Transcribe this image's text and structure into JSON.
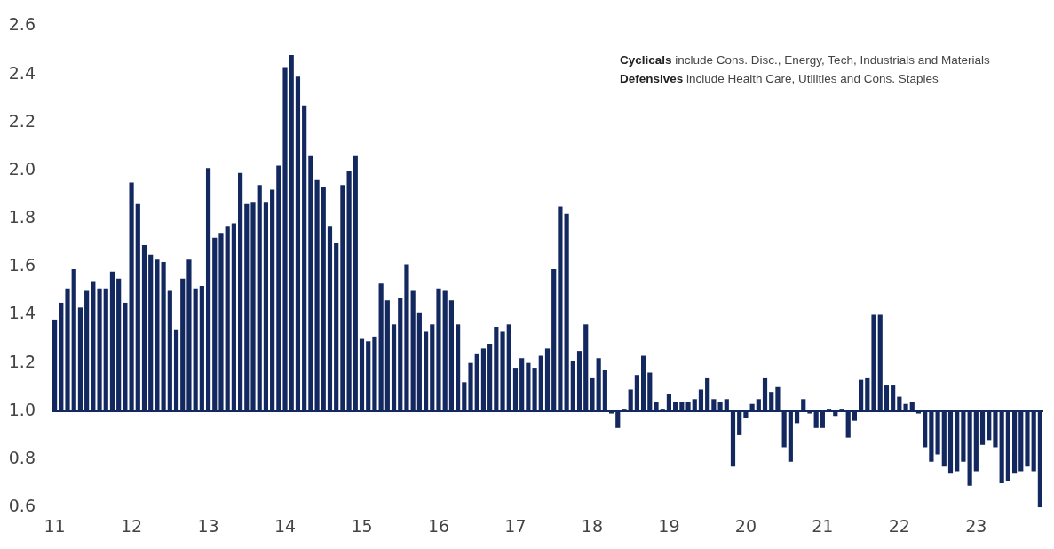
{
  "chart_data": {
    "type": "bar",
    "categories": [
      "11",
      null,
      null,
      null,
      null,
      null,
      null,
      null,
      null,
      null,
      null,
      null,
      "12",
      null,
      null,
      null,
      null,
      null,
      null,
      null,
      null,
      null,
      null,
      null,
      "13",
      null,
      null,
      null,
      null,
      null,
      null,
      null,
      null,
      null,
      null,
      null,
      "14",
      null,
      null,
      null,
      null,
      null,
      null,
      null,
      null,
      null,
      null,
      null,
      "15",
      null,
      null,
      null,
      null,
      null,
      null,
      null,
      null,
      null,
      null,
      null,
      "16",
      null,
      null,
      null,
      null,
      null,
      null,
      null,
      null,
      null,
      null,
      null,
      "17",
      null,
      null,
      null,
      null,
      null,
      null,
      null,
      null,
      null,
      null,
      null,
      "18",
      null,
      null,
      null,
      null,
      null,
      null,
      null,
      null,
      null,
      null,
      null,
      "19",
      null,
      null,
      null,
      null,
      null,
      null,
      null,
      null,
      null,
      null,
      null,
      "20",
      null,
      null,
      null,
      null,
      null,
      null,
      null,
      null,
      null,
      null,
      null,
      "21",
      null,
      null,
      null,
      null,
      null,
      null,
      null,
      null,
      null,
      null,
      null,
      "22",
      null,
      null,
      null,
      null,
      null,
      null,
      null,
      null,
      null,
      null,
      null,
      "23",
      null,
      null,
      null,
      null,
      null,
      null,
      null,
      null,
      null,
      null
    ],
    "base": [
      1,
      1,
      1,
      1,
      1,
      1,
      1,
      1,
      1,
      1,
      1,
      1,
      1,
      1,
      1,
      1,
      1,
      1,
      1,
      1,
      1,
      1,
      1,
      1,
      1,
      1,
      1,
      1,
      1,
      1,
      1,
      1,
      1,
      1,
      1,
      1,
      1,
      1,
      1,
      1,
      1,
      1,
      1,
      1,
      1,
      1,
      1,
      1,
      1,
      1,
      1,
      1,
      1,
      1,
      1,
      1,
      1,
      1,
      1,
      1,
      1,
      1,
      1,
      1,
      1,
      1,
      1,
      1,
      1,
      1,
      1,
      1,
      1,
      1,
      1,
      1,
      1,
      1,
      1,
      1,
      1,
      1,
      1,
      1,
      1,
      1,
      1,
      1,
      1,
      1,
      1,
      1,
      1,
      1,
      1,
      1,
      1,
      1,
      1,
      1,
      1,
      1,
      1,
      1,
      1,
      1,
      1,
      1,
      1,
      1,
      1,
      1,
      1,
      1,
      1,
      1,
      1,
      1,
      1,
      1,
      1,
      1,
      1,
      1,
      1,
      1,
      1,
      1,
      1,
      1,
      1,
      1,
      1,
      1,
      1,
      1,
      1,
      1,
      1,
      1,
      1,
      1,
      1,
      1,
      1,
      1,
      1,
      1,
      1,
      1,
      1,
      1,
      1,
      1,
      1
    ],
    "values": [
      0.38,
      0.45,
      0.51,
      0.59,
      0.43,
      0.5,
      0.54,
      0.51,
      0.51,
      0.58,
      0.55,
      0.45,
      0.95,
      0.86,
      0.69,
      0.65,
      0.63,
      0.62,
      0.5,
      0.34,
      0.55,
      0.63,
      0.51,
      0.52,
      1.01,
      0.72,
      0.74,
      0.77,
      0.78,
      0.99,
      0.86,
      0.87,
      0.94,
      0.87,
      0.92,
      1.02,
      1.43,
      1.48,
      1.39,
      1.27,
      1.06,
      0.96,
      0.93,
      0.77,
      0.7,
      0.94,
      1.0,
      1.06,
      0.3,
      0.29,
      0.31,
      0.53,
      0.46,
      0.36,
      0.47,
      0.61,
      0.5,
      0.41,
      0.33,
      0.36,
      0.51,
      0.5,
      0.46,
      0.36,
      0.12,
      0.2,
      0.24,
      0.26,
      0.28,
      0.35,
      0.33,
      0.36,
      0.18,
      0.22,
      0.2,
      0.18,
      0.23,
      0.26,
      0.59,
      0.85,
      0.82,
      0.21,
      0.25,
      0.36,
      0.14,
      0.22,
      0.17,
      -0.01,
      -0.07,
      0.01,
      0.09,
      0.15,
      0.23,
      0.16,
      0.04,
      0.01,
      0.07,
      0.04,
      0.04,
      0.04,
      0.05,
      0.09,
      0.14,
      0.05,
      0.04,
      0.05,
      -0.23,
      -0.1,
      -0.03,
      0.03,
      0.05,
      0.14,
      0.08,
      0.1,
      -0.15,
      -0.21,
      -0.05,
      0.05,
      -0.01,
      -0.07,
      -0.07,
      0.01,
      -0.02,
      0.01,
      -0.11,
      -0.04,
      0.13,
      0.14,
      0.4,
      0.4,
      0.11,
      0.11,
      0.06,
      0.03,
      0.04,
      -0.01,
      -0.15,
      -0.21,
      -0.18,
      -0.23,
      -0.26,
      -0.25,
      -0.21,
      -0.31,
      -0.25,
      -0.14,
      -0.12,
      -0.15,
      -0.3,
      -0.29,
      -0.26,
      -0.25,
      -0.23,
      -0.25,
      -0.4
    ],
    "color": "#13285f",
    "ylim": [
      0.6,
      2.6
    ],
    "yticks": [
      0.6,
      0.8,
      {
        "value": 1.0,
        "label": "1.0"
      },
      1.2,
      1.4,
      1.6,
      1.8,
      {
        "value": 2.0,
        "label": "2.0"
      },
      2.2,
      2.4,
      2.6
    ],
    "ref_lines": [
      {
        "axis": "y",
        "value": 1.0,
        "color": "#13285f"
      }
    ],
    "annotations": [
      "Cyclicals include Cons. Disc., Energy, Tech, Industrials and Materials",
      "Defensives include Health Care, Utilities and Cons. Staples"
    ]
  }
}
